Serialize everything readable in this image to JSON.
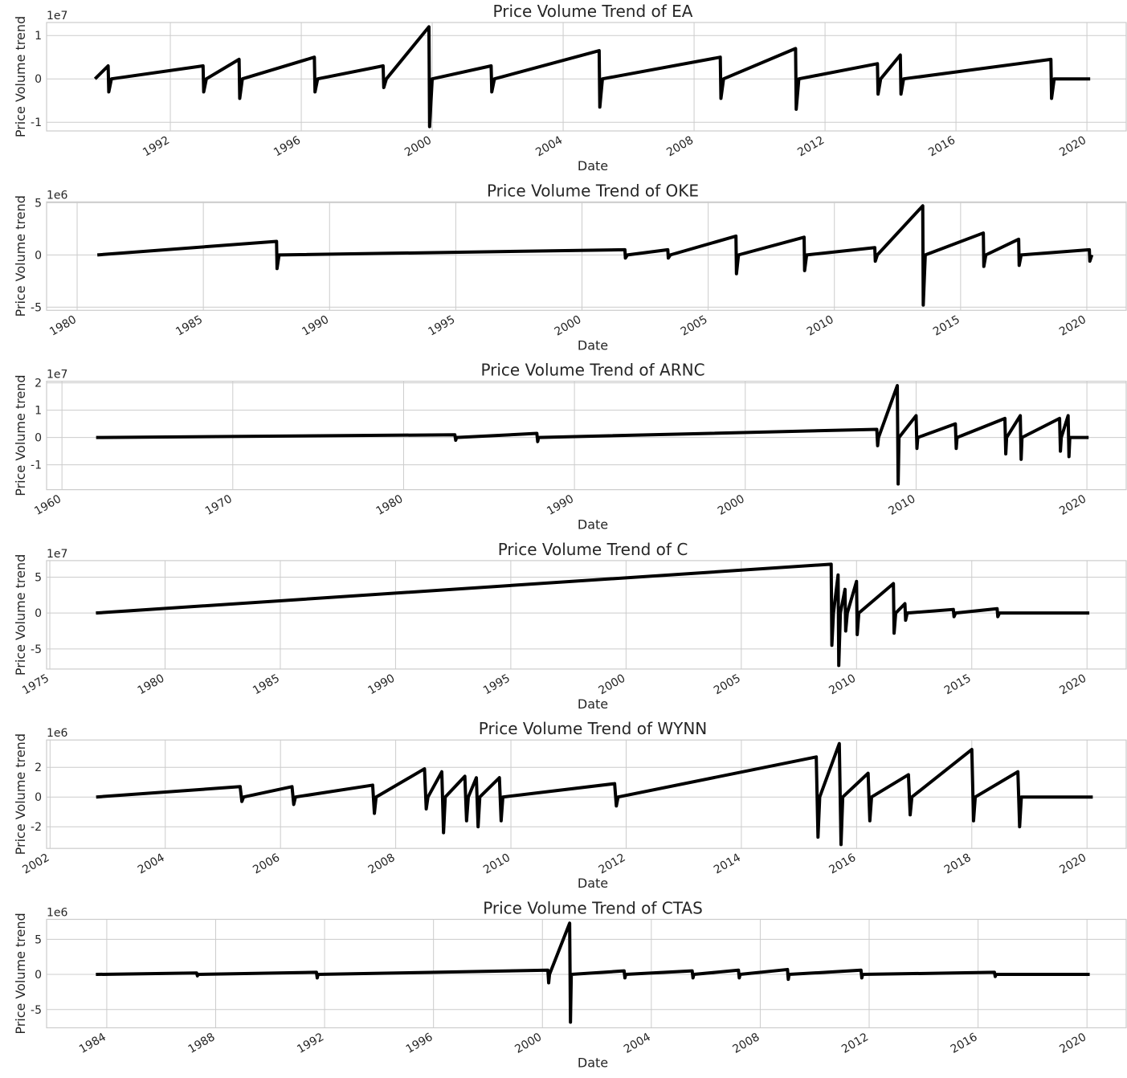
{
  "chart_data": [
    {
      "type": "line",
      "title": "Price Volume Trend of EA",
      "xlabel": "Date",
      "ylabel": "Price Volume trend",
      "y_offset": "1e7",
      "color": "#000000",
      "grid": true,
      "xlim": [
        1988.22,
        2021.2
      ],
      "xticks": [
        1992,
        1996,
        2000,
        2004,
        2008,
        2012,
        2016,
        2020
      ],
      "ylim": [
        -1.2,
        1.3
      ],
      "yticks": [
        -1,
        0,
        1
      ],
      "x": [
        1989.7,
        1990.1,
        1990.12,
        1990.2,
        1993.0,
        1993.02,
        1993.1,
        1994.1,
        1994.12,
        1994.2,
        1996.4,
        1996.42,
        1996.5,
        1998.5,
        1998.52,
        1998.6,
        1999.9,
        1999.92,
        2000.0,
        2001.8,
        2001.82,
        2001.9,
        2005.1,
        2005.12,
        2005.2,
        2008.8,
        2008.82,
        2008.9,
        2011.1,
        2011.12,
        2011.2,
        2013.6,
        2013.62,
        2013.7,
        2014.3,
        2014.32,
        2014.4,
        2018.9,
        2018.92,
        2019.0,
        2020.1
      ],
      "values": [
        0,
        0.3,
        -0.3,
        0,
        0.3,
        -0.3,
        0,
        0.45,
        -0.45,
        0,
        0.5,
        -0.3,
        0,
        0.3,
        -0.2,
        0,
        1.2,
        -1.1,
        0,
        0.3,
        -0.3,
        0,
        0.65,
        -0.65,
        0,
        0.5,
        -0.45,
        0,
        0.7,
        -0.7,
        0,
        0.35,
        -0.35,
        0,
        0.55,
        -0.35,
        0,
        0.45,
        -0.45,
        0,
        0
      ]
    },
    {
      "type": "line",
      "title": "Price Volume Trend of OKE",
      "xlabel": "Date",
      "ylabel": "Price Volume trend",
      "y_offset": "1e6",
      "color": "#000000",
      "grid": true,
      "xlim": [
        1978.79,
        2021.56
      ],
      "xticks": [
        1980,
        1985,
        1990,
        1995,
        2000,
        2005,
        2010,
        2015,
        2020
      ],
      "ylim": [
        -5.3,
        5.08
      ],
      "yticks": [
        -5,
        0,
        5
      ],
      "x": [
        1980.8,
        1987.9,
        1987.92,
        1988.0,
        2001.7,
        2001.72,
        2001.8,
        2003.4,
        2003.42,
        2003.5,
        2006.1,
        2006.12,
        2006.2,
        2008.8,
        2008.82,
        2008.9,
        2011.6,
        2011.62,
        2011.7,
        2013.5,
        2013.52,
        2013.6,
        2015.9,
        2015.92,
        2016.0,
        2017.3,
        2017.32,
        2017.4,
        2020.1,
        2020.12,
        2020.2
      ],
      "values": [
        0,
        1.3,
        -1.3,
        0,
        0.5,
        -0.3,
        0,
        0.5,
        -0.3,
        0,
        1.8,
        -1.8,
        0,
        1.7,
        -1.5,
        0,
        0.7,
        -0.6,
        0,
        4.7,
        -4.8,
        0,
        2.1,
        -1.1,
        0,
        1.5,
        -1,
        0,
        0.5,
        -0.6,
        0
      ]
    },
    {
      "type": "line",
      "title": "Price Volume Trend of ARNC",
      "xlabel": "Date",
      "ylabel": "Price Volume trend",
      "y_offset": "1e7",
      "color": "#000000",
      "grid": true,
      "xlim": [
        1959.1,
        2022.3
      ],
      "xticks": [
        1960,
        1970,
        1980,
        1990,
        2000,
        2010,
        2020
      ],
      "ylim": [
        -1.91,
        2.06
      ],
      "yticks": [
        -1,
        0,
        1,
        2
      ],
      "x": [
        1962,
        1983,
        1983.05,
        1983.1,
        1987.8,
        1987.85,
        1987.9,
        2007.7,
        2007.75,
        2007.8,
        2008.9,
        2008.95,
        2009.0,
        2010.0,
        2010.05,
        2010.1,
        2012.3,
        2012.35,
        2012.4,
        2015.2,
        2015.25,
        2015.3,
        2016.1,
        2016.15,
        2016.2,
        2018.4,
        2018.45,
        2018.5,
        2018.9,
        2018.95,
        2019.0,
        2020.1
      ],
      "values": [
        0,
        0.1,
        -0.1,
        0,
        0.15,
        -0.15,
        0,
        0.3,
        -0.3,
        0,
        1.9,
        -1.7,
        0,
        0.8,
        -0.4,
        0,
        0.5,
        -0.4,
        0,
        0.7,
        -0.6,
        0,
        0.8,
        -0.8,
        0,
        0.7,
        -0.5,
        0,
        0.8,
        -0.7,
        0,
        0
      ]
    },
    {
      "type": "line",
      "title": "Price Volume Trend of C",
      "xlabel": "Date",
      "ylabel": "Price Volume trend",
      "y_offset": "1e7",
      "color": "#000000",
      "grid": true,
      "xlim": [
        1974.86,
        2021.7
      ],
      "xticks": [
        1975,
        1980,
        1985,
        1990,
        1995,
        2000,
        2005,
        2010,
        2015,
        2020
      ],
      "ylim": [
        -7.8,
        7.3
      ],
      "yticks": [
        -5,
        0,
        5
      ],
      "x": [
        1977,
        2008.9,
        2008.93,
        2009.0,
        2009.2,
        2009.23,
        2009.3,
        2009.5,
        2009.53,
        2009.6,
        2010.0,
        2010.03,
        2010.1,
        2011.6,
        2011.63,
        2011.7,
        2012.1,
        2012.13,
        2012.2,
        2014.2,
        2014.23,
        2014.3,
        2016.1,
        2016.13,
        2016.2,
        2020.1
      ],
      "values": [
        0,
        6.8,
        -4.5,
        0,
        5.3,
        -7.3,
        0,
        3.3,
        -2.5,
        0,
        4.4,
        -3,
        0,
        4.1,
        -2.8,
        0,
        1.3,
        -1,
        0,
        0.5,
        -0.5,
        0,
        0.6,
        -0.5,
        0,
        0
      ]
    },
    {
      "type": "line",
      "title": "Price Volume Trend of WYNN",
      "xlabel": "Date",
      "ylabel": "Price Volume trend",
      "y_offset": "1e6",
      "color": "#000000",
      "grid": true,
      "xlim": [
        2001.94,
        2020.68
      ],
      "xticks": [
        2002,
        2004,
        2006,
        2008,
        2010,
        2012,
        2014,
        2016,
        2018,
        2020
      ],
      "ylim": [
        -3.46,
        3.84
      ],
      "yticks": [
        -2,
        0,
        2
      ],
      "x": [
        2002.8,
        2005.3,
        2005.33,
        2005.36,
        2006.2,
        2006.23,
        2006.26,
        2007.6,
        2007.63,
        2007.66,
        2008.5,
        2008.53,
        2008.56,
        2008.8,
        2008.83,
        2008.86,
        2009.2,
        2009.23,
        2009.26,
        2009.4,
        2009.43,
        2009.46,
        2009.8,
        2009.83,
        2009.86,
        2011.8,
        2011.83,
        2011.86,
        2015.3,
        2015.33,
        2015.36,
        2015.7,
        2015.73,
        2015.76,
        2016.2,
        2016.23,
        2016.26,
        2016.9,
        2016.93,
        2016.96,
        2018.0,
        2018.03,
        2018.06,
        2018.8,
        2018.83,
        2018.86,
        2020.1
      ],
      "values": [
        0,
        0.7,
        -0.3,
        0,
        0.7,
        -0.5,
        0,
        0.8,
        -1.1,
        0,
        1.9,
        -0.8,
        0,
        1.7,
        -2.4,
        0,
        1.4,
        -1.6,
        0,
        1.3,
        -2,
        0,
        1.3,
        -1.6,
        0,
        0.9,
        -0.6,
        0,
        2.7,
        -2.7,
        0,
        3.6,
        -3.2,
        0,
        1.6,
        -1.6,
        0,
        1.5,
        -1.2,
        0,
        3.2,
        -1.6,
        0,
        1.7,
        -2,
        0,
        0
      ]
    },
    {
      "type": "line",
      "title": "Price Volume Trend of CTAS",
      "xlabel": "Date",
      "ylabel": "Price Volume trend",
      "y_offset": "1e6",
      "color": "#000000",
      "grid": true,
      "xlim": [
        1981.79,
        2021.44
      ],
      "xticks": [
        1984,
        1988,
        1992,
        1996,
        2000,
        2004,
        2008,
        2012,
        2016,
        2020
      ],
      "ylim": [
        -7.6,
        7.84
      ],
      "yticks": [
        -5,
        0,
        5
      ],
      "x": [
        1983.6,
        1987.3,
        1987.33,
        1987.36,
        1991.7,
        1991.73,
        1991.76,
        2000.2,
        2000.23,
        2000.26,
        2001.0,
        2001.03,
        2001.06,
        2003.0,
        2003.03,
        2003.06,
        2005.5,
        2005.53,
        2005.56,
        2007.2,
        2007.23,
        2007.26,
        2009.0,
        2009.03,
        2009.06,
        2011.7,
        2011.73,
        2011.76,
        2016.6,
        2016.63,
        2016.66,
        2020.1
      ],
      "values": [
        0,
        0.2,
        -0.2,
        0,
        0.3,
        -0.5,
        0,
        0.6,
        -1.2,
        0,
        7.3,
        -6.8,
        0,
        0.5,
        -0.5,
        0,
        0.5,
        -0.5,
        0,
        0.6,
        -0.5,
        0,
        0.7,
        -0.7,
        0,
        0.6,
        -0.5,
        0,
        0.3,
        -0.3,
        0,
        0
      ]
    }
  ]
}
